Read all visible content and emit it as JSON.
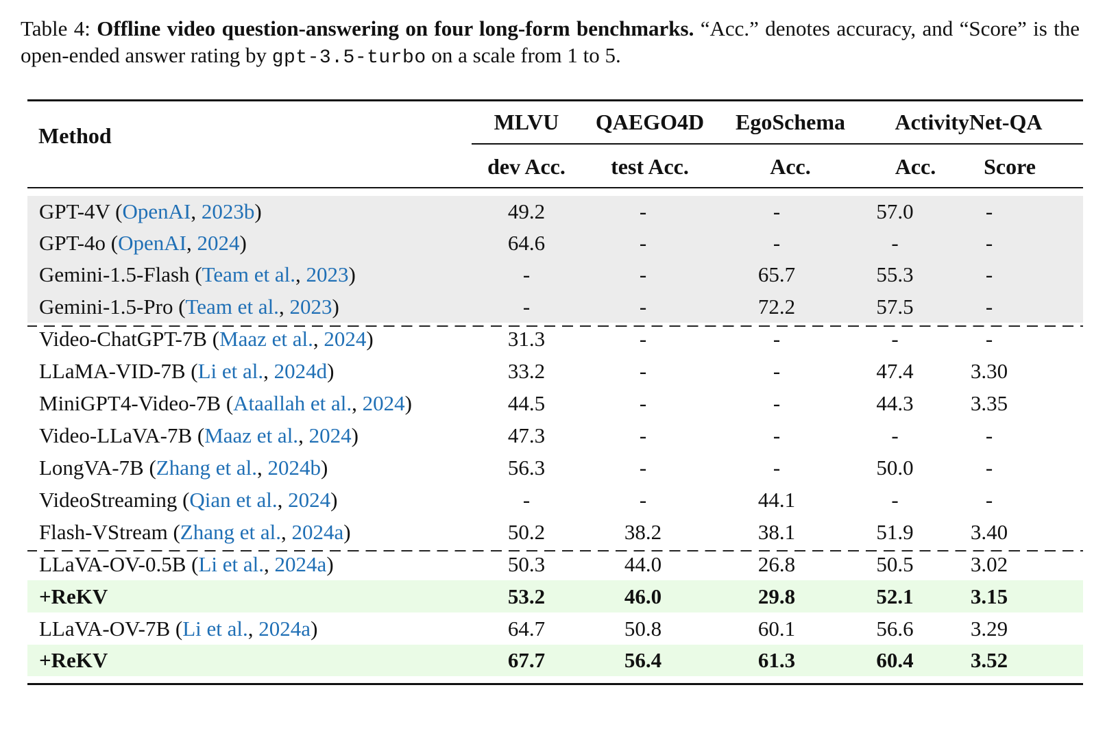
{
  "caption": {
    "label": "Table 4:",
    "title": "Offline video question-answering on four long-form benchmarks.",
    "text_1": "“Acc.” denotes accuracy, and “Score” is the open-ended answer rating by",
    "code": "gpt-3.5-turbo",
    "text_2": "on a scale from 1 to 5."
  },
  "header": {
    "method": "Method",
    "groups": [
      "MLVU",
      "QAEGO4D",
      "EgoSchema",
      "ActivityNet-QA"
    ],
    "subcols": [
      "dev Acc.",
      "test Acc.",
      "Acc.",
      "Acc.",
      "Score"
    ]
  },
  "rows": [
    {
      "name": "GPT-4V",
      "cite_a": "OpenAI",
      "cite_b": "2023b",
      "values": [
        "49.2",
        "-",
        "-",
        "57.0",
        "-"
      ],
      "bg": "gray"
    },
    {
      "name": "GPT-4o",
      "cite_a": "OpenAI",
      "cite_b": "2024",
      "values": [
        "64.6",
        "-",
        "-",
        "-",
        "-"
      ],
      "bg": "gray"
    },
    {
      "name": "Gemini-1.5-Flash",
      "cite_a": "Team et al.",
      "cite_b": "2023",
      "values": [
        "-",
        "-",
        "65.7",
        "55.3",
        "-"
      ],
      "bg": "gray"
    },
    {
      "name": "Gemini-1.5-Pro",
      "cite_a": "Team et al.",
      "cite_b": "2023",
      "values": [
        "-",
        "-",
        "72.2",
        "57.5",
        "-"
      ],
      "bg": "gray"
    },
    {
      "name": "Video-ChatGPT-7B",
      "cite_a": "Maaz et al.",
      "cite_b": "2024",
      "values": [
        "31.3",
        "-",
        "-",
        "-",
        "-"
      ]
    },
    {
      "name": "LLaMA-VID-7B",
      "cite_a": "Li et al.",
      "cite_b": "2024d",
      "values": [
        "33.2",
        "-",
        "-",
        "47.4",
        "3.30"
      ]
    },
    {
      "name": "MiniGPT4-Video-7B",
      "cite_a": "Ataallah et al.",
      "cite_b": "2024",
      "values": [
        "44.5",
        "-",
        "-",
        "44.3",
        "3.35"
      ]
    },
    {
      "name": "Video-LLaVA-7B",
      "cite_a": "Maaz et al.",
      "cite_b": "2024",
      "values": [
        "47.3",
        "-",
        "-",
        "-",
        "-"
      ]
    },
    {
      "name": "LongVA-7B",
      "cite_a": "Zhang et al.",
      "cite_b": "2024b",
      "values": [
        "56.3",
        "-",
        "-",
        "50.0",
        "-"
      ]
    },
    {
      "name": "VideoStreaming",
      "cite_a": "Qian et al.",
      "cite_b": "2024",
      "values": [
        "-",
        "-",
        "44.1",
        "-",
        "-"
      ]
    },
    {
      "name": "Flash-VStream",
      "cite_a": "Zhang et al.",
      "cite_b": "2024a",
      "values": [
        "50.2",
        "38.2",
        "38.1",
        "51.9",
        "3.40"
      ]
    },
    {
      "name": "LLaVA-OV-0.5B",
      "cite_a": "Li et al.",
      "cite_b": "2024a",
      "values": [
        "50.3",
        "44.0",
        "26.8",
        "50.5",
        "3.02"
      ]
    },
    {
      "name": "+ReKV",
      "values": [
        "53.2",
        "46.0",
        "29.8",
        "52.1",
        "3.15"
      ],
      "bg": "green",
      "bold": true
    },
    {
      "name": "LLaVA-OV-7B",
      "cite_a": "Li et al.",
      "cite_b": "2024a",
      "values": [
        "64.7",
        "50.8",
        "60.1",
        "56.6",
        "3.29"
      ]
    },
    {
      "name": "+ReKV",
      "values": [
        "67.7",
        "56.4",
        "61.3",
        "60.4",
        "3.52"
      ],
      "bg": "green",
      "bold": true
    }
  ]
}
